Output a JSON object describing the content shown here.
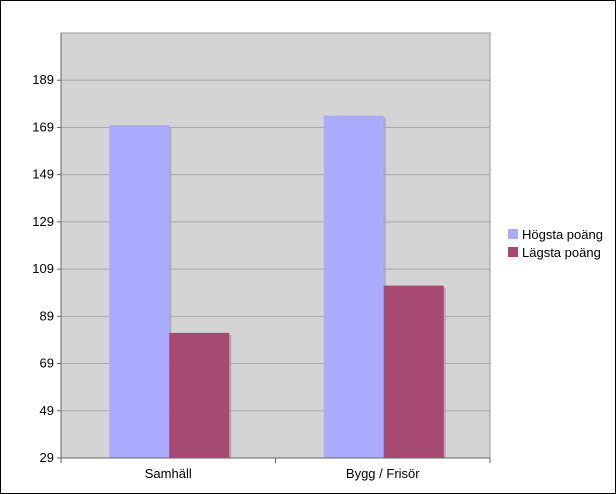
{
  "chart_data": {
    "type": "bar",
    "categories": [
      "Samhäll",
      "Bygg / Frisör"
    ],
    "series": [
      {
        "name": "Högsta poäng",
        "values": [
          170,
          174
        ],
        "color": "#aaaaff"
      },
      {
        "name": "Lägsta poäng",
        "values": [
          82,
          102
        ],
        "color": "#a64a72"
      }
    ],
    "y_ticks": [
      29,
      49,
      69,
      89,
      109,
      129,
      149,
      169,
      189
    ],
    "ylim": [
      29,
      209
    ],
    "grid": true,
    "legend_position": "right",
    "plot_background": "#d4d4d4",
    "title": "",
    "xlabel": "",
    "ylabel": ""
  }
}
